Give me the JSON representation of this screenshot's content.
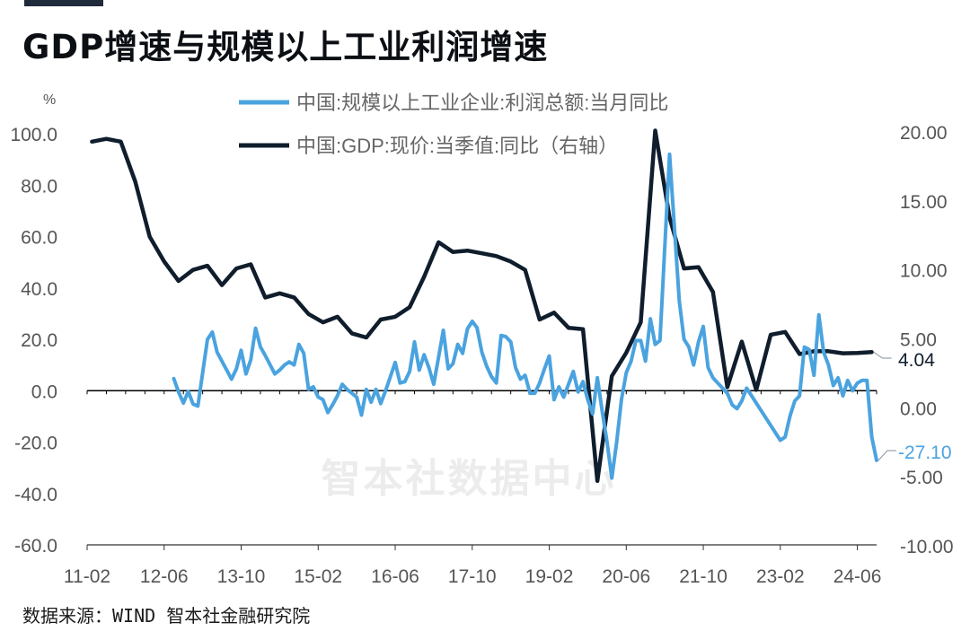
{
  "title": "GDP增速与规模以上工业利润增速",
  "source": "数据来源：WIND 智本社金融研究院",
  "watermark": "智本社数据中心",
  "chart_data": {
    "type": "line",
    "left_axis_unit": "%",
    "left_ylim": [
      -60,
      100
    ],
    "right_ylim": [
      -10,
      20
    ],
    "left_ticks": [
      "100.0",
      "80.0",
      "60.0",
      "40.0",
      "20.0",
      "0.0",
      "-20.0",
      "-40.0",
      "-60.0"
    ],
    "right_ticks": [
      "20.00",
      "15.00",
      "10.00",
      "5.00",
      "0.00",
      "-5.00",
      "-10.00"
    ],
    "x_ticks": [
      "11-02",
      "12-06",
      "13-10",
      "15-02",
      "16-06",
      "17-10",
      "19-02",
      "20-06",
      "21-10",
      "23-02",
      "24-06"
    ],
    "legend": [
      "中国:规模以上工业企业:利润总额:当月同比",
      "中国:GDP:现价:当季值:同比（右轴）"
    ],
    "series": [
      {
        "name": "中国:规模以上工业企业:利润总额:当月同比",
        "axis": "left",
        "color": "#4aa3df",
        "last_label": "-27.10",
        "points": [
          [
            18,
            4.7
          ],
          [
            19,
            -0.5
          ],
          [
            20,
            -4.8
          ],
          [
            21,
            -0.3
          ],
          [
            22,
            -5.2
          ],
          [
            23,
            -6.0
          ],
          [
            25,
            20.0
          ],
          [
            26,
            22.8
          ],
          [
            27,
            15.0
          ],
          [
            29,
            8.0
          ],
          [
            30,
            4.5
          ],
          [
            31,
            8.5
          ],
          [
            32,
            15.7
          ],
          [
            33,
            6.5
          ],
          [
            34,
            12.0
          ],
          [
            35,
            24.3
          ],
          [
            36,
            17.0
          ],
          [
            37,
            13.7
          ],
          [
            39,
            6.5
          ],
          [
            40,
            8.0
          ],
          [
            41,
            10.0
          ],
          [
            42,
            11.2
          ],
          [
            43,
            10.0
          ],
          [
            44,
            18.0
          ],
          [
            45,
            14.5
          ],
          [
            46,
            0.5
          ],
          [
            47,
            1.5
          ],
          [
            48,
            -2.5
          ],
          [
            49,
            -3.5
          ],
          [
            50,
            -8.5
          ],
          [
            51,
            -5.5
          ],
          [
            52,
            -2.0
          ],
          [
            53,
            2.5
          ],
          [
            54,
            0.5
          ],
          [
            55,
            -1.0
          ],
          [
            56,
            -2.5
          ],
          [
            57,
            -9.5
          ],
          [
            58,
            0.5
          ],
          [
            59,
            -4.5
          ],
          [
            60,
            0.5
          ],
          [
            61,
            -5.0
          ],
          [
            62,
            0.0
          ],
          [
            63,
            5.5
          ],
          [
            64,
            11.0
          ],
          [
            65,
            3.0
          ],
          [
            66,
            3.5
          ],
          [
            67,
            7.5
          ],
          [
            68,
            19.0
          ],
          [
            69,
            8.0
          ],
          [
            70,
            14.0
          ],
          [
            71,
            9.0
          ],
          [
            72,
            2.5
          ],
          [
            73,
            13.0
          ],
          [
            74,
            23.5
          ],
          [
            75,
            8.5
          ],
          [
            76,
            10.5
          ],
          [
            77,
            18.0
          ],
          [
            78,
            14.5
          ],
          [
            79,
            24.0
          ],
          [
            80,
            27.0
          ],
          [
            81,
            24.5
          ],
          [
            82,
            15.0
          ],
          [
            83,
            9.5
          ],
          [
            84,
            5.5
          ],
          [
            85,
            3.0
          ],
          [
            86,
            21.5
          ],
          [
            87,
            21.0
          ],
          [
            88,
            19.0
          ],
          [
            89,
            9.0
          ],
          [
            90,
            4.5
          ],
          [
            91,
            6.0
          ],
          [
            92,
            -1.0
          ],
          [
            93,
            -1.0
          ],
          [
            94,
            3.0
          ],
          [
            95,
            8.5
          ],
          [
            96,
            13.5
          ],
          [
            97,
            -3.5
          ],
          [
            98,
            1.5
          ],
          [
            99,
            -2.5
          ],
          [
            100,
            2.5
          ],
          [
            101,
            7.5
          ],
          [
            102,
            -0.5
          ],
          [
            103,
            3.5
          ],
          [
            104,
            -3.5
          ],
          [
            105,
            -9.0
          ],
          [
            106,
            5.0
          ],
          [
            107,
            -8.0
          ],
          [
            108,
            -20.0
          ],
          [
            109,
            -34.0
          ],
          [
            110,
            -20.0
          ],
          [
            111,
            -3.5
          ],
          [
            112,
            7.0
          ],
          [
            113,
            11.5
          ],
          [
            114,
            19.5
          ],
          [
            115,
            19.5
          ],
          [
            116,
            11.5
          ],
          [
            117,
            28.0
          ],
          [
            118,
            18.0
          ],
          [
            119,
            19.5
          ],
          [
            121,
            92.0
          ],
          [
            123,
            35.0
          ],
          [
            124,
            20.0
          ],
          [
            125,
            17.0
          ],
          [
            126,
            10.0
          ],
          [
            127,
            19.0
          ],
          [
            128,
            25.0
          ],
          [
            129,
            9.0
          ],
          [
            130,
            5.0
          ],
          [
            131,
            3.0
          ],
          [
            133,
            -1.0
          ],
          [
            134,
            -5.5
          ],
          [
            135,
            -7.0
          ],
          [
            136,
            -4.0
          ],
          [
            137,
            1.0
          ],
          [
            144,
            -19.3
          ],
          [
            145,
            -18.0
          ],
          [
            146,
            -10.0
          ],
          [
            147,
            -4.0
          ],
          [
            148,
            -2.0
          ],
          [
            149,
            17.0
          ],
          [
            150,
            16.0
          ],
          [
            151,
            6.0
          ],
          [
            152,
            29.5
          ],
          [
            153,
            15.0
          ],
          [
            154,
            10.0
          ],
          [
            155,
            2.0
          ],
          [
            156,
            5.0
          ],
          [
            157,
            -2.0
          ],
          [
            158,
            4.0
          ],
          [
            159,
            0.0
          ],
          [
            160,
            3.0
          ],
          [
            161,
            4.0
          ],
          [
            162,
            4.0
          ],
          [
            163,
            -18.0
          ],
          [
            164,
            -27.1
          ]
        ]
      },
      {
        "name": "中国:GDP:现价:当季值:同比（右轴）",
        "axis": "right",
        "color": "#0f1d2c",
        "last_label": "4.04",
        "points": [
          [
            1,
            19.3
          ],
          [
            4,
            19.5
          ],
          [
            7,
            19.3
          ],
          [
            10,
            16.4
          ],
          [
            13,
            12.4
          ],
          [
            16,
            10.6
          ],
          [
            19,
            9.2
          ],
          [
            22,
            10.0
          ],
          [
            25,
            10.3
          ],
          [
            28,
            8.9
          ],
          [
            31,
            10.1
          ],
          [
            34,
            10.4
          ],
          [
            37,
            8.0
          ],
          [
            40,
            8.3
          ],
          [
            43,
            8.0
          ],
          [
            46,
            6.8
          ],
          [
            49,
            6.2
          ],
          [
            52,
            6.6
          ],
          [
            55,
            5.4
          ],
          [
            58,
            5.1
          ],
          [
            61,
            6.4
          ],
          [
            64,
            6.6
          ],
          [
            67,
            7.3
          ],
          [
            70,
            9.5
          ],
          [
            73,
            12.0
          ],
          [
            76,
            11.3
          ],
          [
            79,
            11.4
          ],
          [
            82,
            11.2
          ],
          [
            85,
            11.0
          ],
          [
            88,
            10.6
          ],
          [
            91,
            10.0
          ],
          [
            94,
            6.4
          ],
          [
            97,
            6.9
          ],
          [
            100,
            5.8
          ],
          [
            103,
            5.7
          ],
          [
            106,
            -5.3
          ],
          [
            109,
            2.3
          ],
          [
            112,
            4.0
          ],
          [
            115,
            6.2
          ],
          [
            118,
            20.1
          ],
          [
            121,
            13.8
          ],
          [
            124,
            10.1
          ],
          [
            127,
            10.2
          ],
          [
            130,
            8.4
          ],
          [
            133,
            1.5
          ],
          [
            136,
            4.8
          ],
          [
            139,
            1.3
          ],
          [
            142,
            5.3
          ],
          [
            145,
            5.5
          ],
          [
            148,
            3.9
          ],
          [
            151,
            4.1
          ],
          [
            154,
            4.1
          ],
          [
            157,
            3.95
          ],
          [
            160,
            3.98
          ],
          [
            163,
            4.04
          ]
        ]
      }
    ]
  }
}
